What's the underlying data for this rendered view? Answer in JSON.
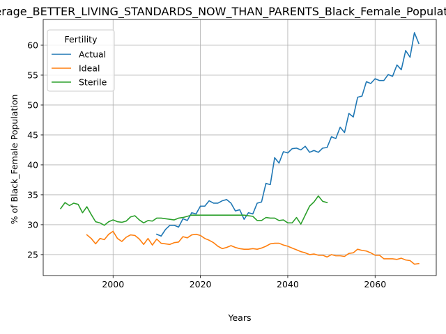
{
  "chart_data": {
    "type": "line",
    "title": "Average_BETTER_LIVING_STANDARDS_NOW_THAN_PARENTS_Black_Female_Population",
    "xlabel": "Years",
    "ylabel": "% of Black_Female Population",
    "xlim": [
      1984,
      2074
    ],
    "ylim": [
      21.5,
      64.3
    ],
    "x_ticks": [
      2000,
      2020,
      2040,
      2060
    ],
    "y_ticks": [
      25,
      30,
      35,
      40,
      45,
      50,
      55,
      60
    ],
    "grid": true,
    "legend": {
      "title": "Fertility",
      "placement": "upper-left"
    },
    "series": [
      {
        "name": "Actual",
        "color": "#1f77b4",
        "x": [
          2010,
          2011,
          2012,
          2013,
          2014,
          2015,
          2016,
          2017,
          2018,
          2019,
          2020,
          2021,
          2022,
          2023,
          2024,
          2025,
          2026,
          2027,
          2028,
          2029,
          2030,
          2031,
          2032,
          2033,
          2034,
          2035,
          2036,
          2037,
          2038,
          2039,
          2040,
          2041,
          2042,
          2043,
          2044,
          2045,
          2046,
          2047,
          2048,
          2049,
          2050,
          2051,
          2052,
          2053,
          2054,
          2055,
          2056,
          2057,
          2058,
          2059,
          2060,
          2061,
          2062,
          2063,
          2064,
          2065,
          2066,
          2067,
          2068,
          2069,
          2070
        ],
        "y": [
          28.4,
          28.1,
          29.2,
          29.9,
          29.9,
          29.6,
          31.0,
          30.7,
          32.0,
          31.8,
          33.1,
          33.1,
          34.0,
          33.6,
          33.6,
          34.0,
          34.2,
          33.6,
          32.3,
          32.5,
          30.9,
          32.0,
          31.8,
          33.6,
          33.8,
          36.9,
          36.7,
          41.2,
          40.3,
          42.2,
          42.0,
          42.7,
          42.8,
          42.5,
          43.1,
          42.1,
          42.4,
          42.1,
          42.8,
          42.9,
          44.7,
          44.4,
          46.3,
          45.4,
          48.6,
          48.0,
          51.3,
          51.5,
          53.9,
          53.6,
          54.4,
          54.1,
          54.1,
          55.1,
          54.8,
          56.7,
          55.9,
          59.1,
          58.0,
          62.1,
          60.3
        ]
      },
      {
        "name": "Ideal",
        "color": "#ff7f0e",
        "x": [
          1994,
          1995,
          1996,
          1997,
          1998,
          1999,
          2000,
          2001,
          2002,
          2003,
          2004,
          2005,
          2006,
          2007,
          2008,
          2009,
          2010,
          2011,
          2012,
          2013,
          2014,
          2015,
          2016,
          2017,
          2018,
          2019,
          2020,
          2021,
          2022,
          2023,
          2024,
          2025,
          2026,
          2027,
          2028,
          2029,
          2030,
          2031,
          2032,
          2033,
          2034,
          2035,
          2036,
          2037,
          2038,
          2039,
          2040,
          2041,
          2042,
          2043,
          2044,
          2045,
          2046,
          2047,
          2048,
          2049,
          2050,
          2051,
          2052,
          2053,
          2054,
          2055,
          2056,
          2057,
          2058,
          2059,
          2060,
          2061,
          2062,
          2063,
          2064,
          2065,
          2066,
          2067,
          2068,
          2069,
          2070
        ],
        "y": [
          28.3,
          27.7,
          26.8,
          27.7,
          27.5,
          28.4,
          28.9,
          27.7,
          27.2,
          27.9,
          28.3,
          28.2,
          27.6,
          26.7,
          27.7,
          26.6,
          27.6,
          26.9,
          26.8,
          26.7,
          27.0,
          27.1,
          28.0,
          27.8,
          28.3,
          28.4,
          28.2,
          27.7,
          27.4,
          27.0,
          26.4,
          26.0,
          26.2,
          26.5,
          26.2,
          26.0,
          25.9,
          25.9,
          26.0,
          25.9,
          26.1,
          26.4,
          26.8,
          26.9,
          26.9,
          26.6,
          26.4,
          26.1,
          25.8,
          25.5,
          25.3,
          25.0,
          25.1,
          24.9,
          24.9,
          24.6,
          25.0,
          24.8,
          24.8,
          24.7,
          25.2,
          25.3,
          25.9,
          25.7,
          25.6,
          25.3,
          24.9,
          24.9,
          24.3,
          24.3,
          24.3,
          24.2,
          24.4,
          24.1,
          24.0,
          23.4,
          23.5
        ]
      },
      {
        "name": "Sterile",
        "color": "#2ca02c",
        "x": [
          1988,
          1989,
          1990,
          1991,
          1992,
          1993,
          1994,
          1995,
          1996,
          1997,
          1998,
          1999,
          2000,
          2001,
          2002,
          2003,
          2004,
          2005,
          2006,
          2007,
          2008,
          2009,
          2010,
          2011,
          2012,
          2013,
          2014,
          2015,
          2016,
          2017,
          2018,
          2019,
          2020,
          2021,
          2022,
          2023,
          2024,
          2025,
          2026,
          2027,
          2028,
          2029,
          2030,
          2031,
          2032,
          2033,
          2034,
          2035,
          2036,
          2037,
          2038,
          2039,
          2040,
          2041,
          2042,
          2043,
          2044,
          2045,
          2046,
          2047,
          2048,
          2049
        ],
        "y": [
          32.7,
          33.7,
          33.2,
          33.6,
          33.4,
          32.0,
          33.0,
          31.7,
          30.5,
          30.3,
          29.9,
          30.5,
          30.8,
          30.5,
          30.4,
          30.6,
          31.3,
          31.5,
          30.8,
          30.3,
          30.7,
          30.6,
          31.1,
          31.1,
          31.0,
          30.9,
          30.8,
          31.1,
          31.2,
          31.4,
          31.6,
          31.6,
          31.6,
          31.6,
          31.6,
          31.6,
          31.6,
          31.6,
          31.6,
          31.6,
          31.6,
          31.6,
          31.6,
          31.5,
          31.4,
          30.7,
          30.7,
          31.2,
          31.1,
          31.1,
          30.7,
          30.8,
          30.3,
          30.3,
          31.2,
          30.1,
          31.6,
          33.1,
          33.8,
          34.8,
          33.9,
          33.7
        ]
      }
    ]
  }
}
